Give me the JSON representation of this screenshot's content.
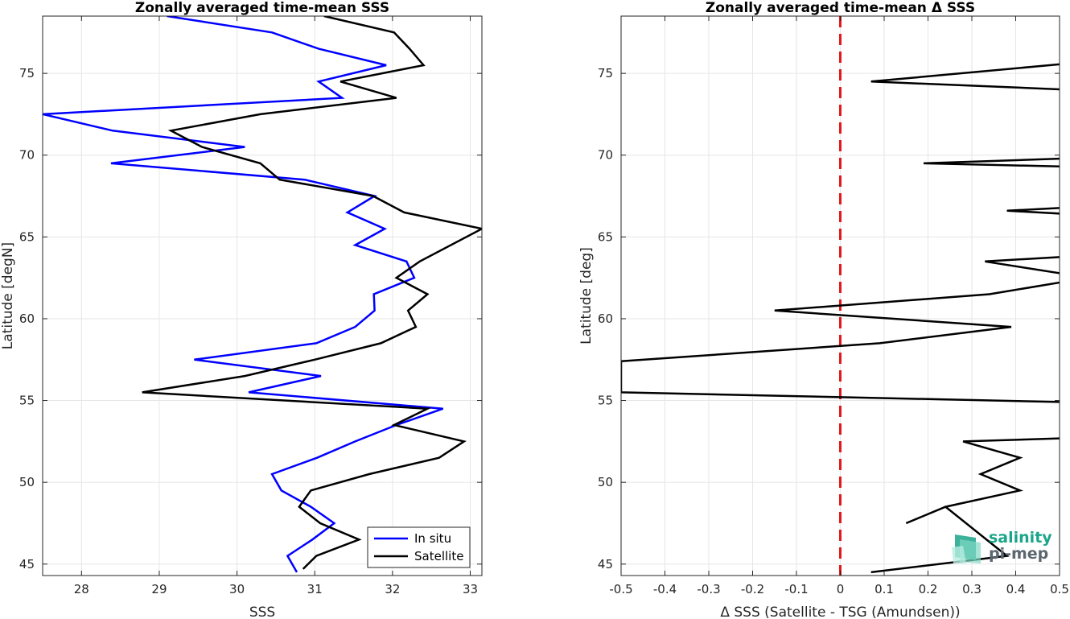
{
  "chart_data": [
    {
      "type": "line",
      "title": "Zonally averaged time-mean SSS",
      "xlabel": "SSS",
      "ylabel": "Latitude [degN]",
      "xlim": [
        27.5,
        33.15
      ],
      "ylim": [
        44.3,
        78.5
      ],
      "xticks": [
        28,
        29,
        30,
        31,
        32,
        33
      ],
      "yticks": [
        45,
        50,
        55,
        60,
        65,
        70,
        75
      ],
      "grid": true,
      "legend": "bottom-right",
      "series": [
        {
          "name": "In situ",
          "color": "#0000ff",
          "x": [
            30.77,
            30.65,
            30.97,
            31.25,
            30.95,
            30.57,
            30.45,
            31.03,
            31.52,
            32.05,
            32.65,
            30.15,
            31.08,
            29.45,
            31.02,
            31.52,
            31.77,
            31.76,
            32.28,
            32.18,
            31.52,
            31.9,
            31.42,
            31.77,
            30.87,
            28.38,
            30.1,
            28.4,
            27.5,
            31.35,
            31.05,
            31.92,
            31.05,
            30.45,
            29.1
          ],
          "y": [
            44.5,
            45.5,
            46.5,
            47.5,
            48.5,
            49.5,
            50.5,
            51.5,
            52.5,
            53.5,
            54.5,
            55.5,
            56.5,
            57.5,
            58.5,
            59.5,
            60.5,
            61.5,
            62.5,
            63.5,
            64.5,
            65.5,
            66.5,
            67.5,
            68.5,
            69.5,
            70.5,
            71.5,
            72.5,
            73.5,
            74.5,
            75.5,
            76.5,
            77.5,
            78.5
          ]
        },
        {
          "name": "Satellite",
          "color": "#000000",
          "x": [
            30.85,
            31.02,
            31.57,
            31.07,
            30.8,
            30.95,
            31.7,
            32.6,
            32.92,
            32.02,
            32.45,
            28.78,
            30.1,
            31.0,
            31.85,
            32.3,
            32.2,
            32.45,
            32.05,
            32.35,
            33.15,
            32.15,
            31.75,
            30.55,
            30.3,
            29.55,
            29.15,
            30.3,
            32.05,
            31.33,
            32.4,
            32.22,
            32.02,
            31.12
          ],
          "y": [
            44.7,
            45.5,
            46.5,
            47.5,
            48.5,
            49.5,
            50.5,
            51.5,
            52.5,
            53.5,
            54.5,
            55.5,
            56.5,
            57.5,
            58.5,
            59.5,
            60.5,
            61.5,
            62.5,
            63.5,
            65.5,
            66.5,
            67.5,
            68.5,
            69.5,
            70.5,
            71.5,
            72.5,
            73.5,
            74.5,
            75.5,
            76.5,
            77.5,
            78.5
          ]
        }
      ]
    },
    {
      "type": "line",
      "title": "Zonally averaged time-mean Δ SSS",
      "xlabel": "Δ SSS (Satellite - TSG (Amundsen))",
      "ylabel": "Latitude [deg]",
      "xlim": [
        -0.5,
        0.5
      ],
      "ylim": [
        44.3,
        78.5
      ],
      "xticks": [
        -0.5,
        -0.4,
        -0.3,
        -0.2,
        -0.1,
        0,
        0.1,
        0.2,
        0.3,
        0.4,
        0.5
      ],
      "yticks": [
        45,
        50,
        55,
        60,
        65,
        70,
        75
      ],
      "grid": true,
      "zero_line": {
        "x": 0,
        "color": "#e31a1c",
        "style": "dashed"
      },
      "series": [
        {
          "name": "",
          "color": "#000000",
          "x": [
            0.07,
            0.38,
            0.24,
            0.15,
            0.24,
            0.41,
            0.32,
            0.41,
            0.28,
            0.52,
            0.52,
            -0.5,
            -0.5,
            0.09,
            0.39,
            -0.15,
            0.34,
            0.52,
            0.52,
            0.33,
            0.52,
            0.52,
            0.38,
            0.52,
            0.52,
            0.19,
            0.52,
            0.52,
            0.07,
            0.52
          ],
          "y": [
            44.5,
            45.5,
            48.5,
            47.5,
            48.5,
            49.5,
            50.5,
            51.5,
            52.5,
            52.7,
            54.9,
            55.5,
            57.4,
            58.5,
            59.5,
            60.5,
            61.5,
            62.3,
            62.7,
            63.5,
            63.8,
            66.4,
            66.6,
            66.8,
            69.3,
            69.5,
            69.8,
            74.0,
            74.5,
            75.6
          ]
        }
      ]
    }
  ],
  "logo": {
    "line1": "salinity",
    "line2": "pi-mep"
  },
  "colors": {
    "insitu": "#0000ff",
    "satellite": "#000000",
    "zero_line": "#e31a1c",
    "logo_green": "#1aa58a"
  }
}
